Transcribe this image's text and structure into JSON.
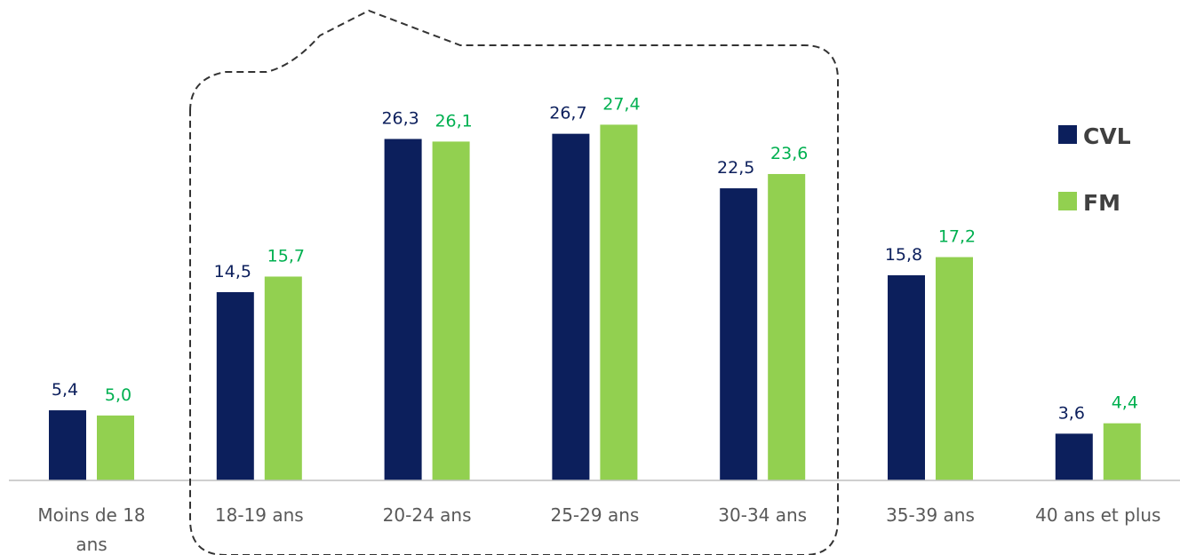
{
  "chart_data": {
    "type": "bar",
    "categories": [
      [
        "Moins de 18",
        "ans"
      ],
      [
        "18-19 ans"
      ],
      [
        "20-24 ans"
      ],
      [
        "25-29 ans"
      ],
      [
        "30-34 ans"
      ],
      [
        "35-39 ans"
      ],
      [
        "40 ans et plus"
      ]
    ],
    "series": [
      {
        "name": "CVL",
        "color": "#0c1f5c",
        "values": [
          5.4,
          14.5,
          26.3,
          26.7,
          22.5,
          15.8,
          3.6
        ],
        "labels": [
          "5,4",
          "14,5",
          "26,3",
          "26,7",
          "22,5",
          "15,8",
          "3,6"
        ]
      },
      {
        "name": "FM",
        "color": "#92d050",
        "label_color": "#00b050",
        "values": [
          5.0,
          15.7,
          26.1,
          27.4,
          23.6,
          17.2,
          4.4
        ],
        "labels": [
          "5,0",
          "15,7",
          "26,1",
          "27,4",
          "23,6",
          "17,2",
          "4,4"
        ]
      }
    ],
    "ylim": [
      0,
      30
    ],
    "grid": false,
    "legend_position": "right",
    "annotation": "dashed outline grouping 18-19 ans to 30-34 ans"
  }
}
